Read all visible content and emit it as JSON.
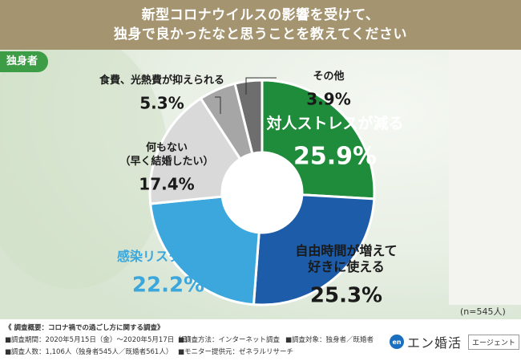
{
  "header": {
    "line1": "新型コロナウイルスの影響を受けて、",
    "line2": "独身で良かったなと思うことを教えてください"
  },
  "tag": "独身者",
  "sample": "(n=545人)",
  "chart_data": {
    "type": "pie",
    "donut": true,
    "slices": [
      {
        "label_lines": [
          "対人ストレスが減る"
        ],
        "value": 25.9,
        "color": "#1e8c3a",
        "label_color": "#ffffff"
      },
      {
        "label_lines": [
          "自由時間が増えて",
          "好きに使える"
        ],
        "value": 25.3,
        "color": "#1c5ca8",
        "label_color": "#1a1a1a"
      },
      {
        "label_lines": [
          "感染リスクが減る"
        ],
        "value": 22.2,
        "color": "#3ba7dc",
        "label_color": "#3ba7dc"
      },
      {
        "label_lines": [
          "何もない",
          "（早く結婚したい）"
        ],
        "value": 17.4,
        "color": "#d9d9d9",
        "label_color": "#1a1a1a"
      },
      {
        "label_lines": [
          "食費、光熱費が抑えられる"
        ],
        "value": 5.3,
        "color": "#a6a6a6",
        "label_color": "#1a1a1a"
      },
      {
        "label_lines": [
          "その他"
        ],
        "value": 3.9,
        "color": "#6e6e6e",
        "label_color": "#1a1a1a"
      }
    ]
  },
  "footer": {
    "survey_title": "《 調査概要：コロナ禍での過ごし方に関する調査》",
    "period": "■調査期間：2020年5月15日（金）〜2020年5月17日（日）",
    "count": "■調査人数：1,106人（独身者545人／既婚者561人）",
    "method": "■調査方法：インターネット調査",
    "provider": "■モニター提供元：ゼネラルリサーチ",
    "target": "■調査対象：独身者／既婚者",
    "logo_mark": "en",
    "logo_text": "エン婚活",
    "logo_sub": "エージェント"
  }
}
